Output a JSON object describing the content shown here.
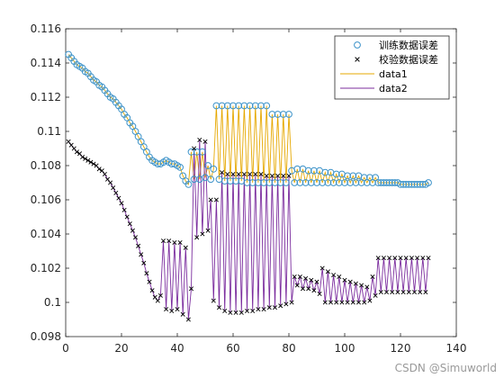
{
  "chart_data": {
    "type": "line",
    "title": "",
    "xlabel": "",
    "ylabel": "",
    "xlim": [
      0,
      140
    ],
    "ylim": [
      0.098,
      0.116
    ],
    "xticks": [
      "0",
      "20",
      "40",
      "60",
      "80",
      "100",
      "120",
      "140"
    ],
    "yticks": [
      "0.098",
      "0.1",
      "0.102",
      "0.104",
      "0.106",
      "0.108",
      "0.11",
      "0.112",
      "0.114",
      "0.116"
    ],
    "grid": false,
    "legend_position": "top-right",
    "legend": [
      {
        "label": "训练数据误差",
        "marker": "circle",
        "color": "#3d93c9"
      },
      {
        "label": "校验数据误差",
        "marker": "x",
        "color": "#000000"
      },
      {
        "label": "data1",
        "marker": "line",
        "color": "#e6a800"
      },
      {
        "label": "data2",
        "marker": "line",
        "color": "#7b2d9e"
      }
    ],
    "series_colors": {
      "train_marker": "#3d93c9",
      "check_marker": "#000000",
      "data1": "#e6a800",
      "data2": "#7b2d9e"
    },
    "series": [
      {
        "x": [
          1,
          2,
          3,
          4,
          5,
          6,
          7,
          8,
          9,
          10,
          11,
          12,
          13,
          14,
          15,
          16,
          17,
          18,
          19,
          20,
          21,
          22,
          23,
          24,
          25,
          26,
          27,
          28,
          29,
          30,
          31,
          32,
          33,
          34,
          35,
          36,
          37,
          38,
          39,
          40,
          41,
          42,
          43,
          44,
          45,
          46,
          47,
          48,
          49,
          50,
          51,
          52,
          53,
          54,
          55,
          56,
          57,
          58,
          59,
          60,
          61,
          62,
          63,
          64,
          65,
          66,
          67,
          68,
          69,
          70,
          71,
          72,
          73,
          74,
          75,
          76,
          77,
          78,
          79,
          80,
          81,
          82,
          83,
          84,
          85,
          86,
          87,
          88,
          89,
          90,
          91,
          92,
          93,
          94,
          95,
          96,
          97,
          98,
          99,
          100,
          101,
          102,
          103,
          104,
          105,
          106,
          107,
          108,
          109,
          110,
          111,
          112,
          113,
          114,
          115,
          116,
          117,
          118,
          119,
          120,
          121,
          122,
          123,
          124,
          125,
          126,
          127,
          128,
          129,
          130
        ],
        "values": [
          0.1145,
          0.1143,
          0.1141,
          0.1139,
          0.1138,
          0.1137,
          0.1135,
          0.1134,
          0.1132,
          0.113,
          0.1129,
          0.1127,
          0.1126,
          0.1124,
          0.1122,
          0.112,
          0.1119,
          0.1117,
          0.1115,
          0.1113,
          0.111,
          0.1108,
          0.1105,
          0.1103,
          0.11,
          0.1097,
          0.1094,
          0.1091,
          0.1088,
          0.1085,
          0.1083,
          0.1082,
          0.1081,
          0.1081,
          0.1082,
          0.1083,
          0.1082,
          0.1081,
          0.1081,
          0.108,
          0.1079,
          0.1074,
          0.1071,
          0.1069,
          0.1088,
          0.1072,
          0.1088,
          0.1072,
          0.1088,
          0.1073,
          0.108,
          0.1072,
          0.1078,
          0.1115,
          0.1072,
          0.1115,
          0.1071,
          0.1115,
          0.1071,
          0.1115,
          0.1071,
          0.1115,
          0.1071,
          0.1115,
          0.107,
          0.1115,
          0.107,
          0.1115,
          0.107,
          0.1115,
          0.107,
          0.1115,
          0.107,
          0.111,
          0.107,
          0.111,
          0.107,
          0.111,
          0.107,
          0.111,
          0.1077,
          0.107,
          0.1078,
          0.107,
          0.1078,
          0.107,
          0.1077,
          0.107,
          0.1077,
          0.107,
          0.1077,
          0.107,
          0.1076,
          0.107,
          0.1076,
          0.107,
          0.1075,
          0.107,
          0.1075,
          0.107,
          0.1074,
          0.107,
          0.1074,
          0.107,
          0.1074,
          0.107,
          0.1073,
          0.107,
          0.1073,
          0.107,
          0.1073,
          0.107,
          0.107,
          0.107,
          0.107,
          0.107,
          0.107,
          0.107,
          0.107,
          0.1069,
          0.1069,
          0.1069,
          0.1069,
          0.1069,
          0.1069,
          0.1069,
          0.1069,
          0.1069,
          0.1069,
          0.107
        ]
      },
      {
        "x": [
          1,
          2,
          3,
          4,
          5,
          6,
          7,
          8,
          9,
          10,
          11,
          12,
          13,
          14,
          15,
          16,
          17,
          18,
          19,
          20,
          21,
          22,
          23,
          24,
          25,
          26,
          27,
          28,
          29,
          30,
          31,
          32,
          33,
          34,
          35,
          36,
          37,
          38,
          39,
          40,
          41,
          42,
          43,
          44,
          45,
          46,
          47,
          48,
          49,
          50,
          51,
          52,
          53,
          54,
          55,
          56,
          57,
          58,
          59,
          60,
          61,
          62,
          63,
          64,
          65,
          66,
          67,
          68,
          69,
          70,
          71,
          72,
          73,
          74,
          75,
          76,
          77,
          78,
          79,
          80,
          81,
          82,
          83,
          84,
          85,
          86,
          87,
          88,
          89,
          90,
          91,
          92,
          93,
          94,
          95,
          96,
          97,
          98,
          99,
          100,
          101,
          102,
          103,
          104,
          105,
          106,
          107,
          108,
          109,
          110,
          111,
          112,
          113,
          114,
          115,
          116,
          117,
          118,
          119,
          120,
          121,
          122,
          123,
          124,
          125,
          126,
          127,
          128,
          129,
          130
        ],
        "values": [
          0.1094,
          0.1092,
          0.109,
          0.1088,
          0.1087,
          0.1085,
          0.1084,
          0.1083,
          0.1082,
          0.1081,
          0.108,
          0.1078,
          0.1077,
          0.1075,
          0.1072,
          0.107,
          0.1067,
          0.1064,
          0.1061,
          0.1058,
          0.1054,
          0.105,
          0.1046,
          0.1042,
          0.1038,
          0.1033,
          0.1028,
          0.1023,
          0.1017,
          0.1012,
          0.1007,
          0.1003,
          0.1001,
          0.1004,
          0.1036,
          0.0996,
          0.1036,
          0.0995,
          0.1035,
          0.0996,
          0.1035,
          0.0993,
          0.1032,
          0.099,
          0.1008,
          0.109,
          0.1038,
          0.1095,
          0.104,
          0.1094,
          0.1042,
          0.106,
          0.1001,
          0.106,
          0.0997,
          0.1076,
          0.0995,
          0.1075,
          0.0994,
          0.1075,
          0.0994,
          0.1075,
          0.0994,
          0.1075,
          0.0995,
          0.1075,
          0.0995,
          0.1075,
          0.0996,
          0.1075,
          0.0996,
          0.1074,
          0.0997,
          0.1074,
          0.0997,
          0.1074,
          0.0998,
          0.1074,
          0.0999,
          0.1074,
          0.1,
          0.1015,
          0.101,
          0.1015,
          0.1008,
          0.1014,
          0.1008,
          0.1013,
          0.1007,
          0.1012,
          0.1005,
          0.102,
          0.1,
          0.1018,
          0.1,
          0.1016,
          0.1,
          0.1015,
          0.1,
          0.1013,
          0.1,
          0.1012,
          0.1,
          0.1011,
          0.1,
          0.101,
          0.1,
          0.1009,
          0.1001,
          0.1015,
          0.1004,
          0.1026,
          0.1006,
          0.1026,
          0.1006,
          0.1026,
          0.1006,
          0.1026,
          0.1006,
          0.1026,
          0.1006,
          0.1026,
          0.1006,
          0.1026,
          0.1006,
          0.1026,
          0.1006,
          0.1026,
          0.1006,
          0.1026
        ]
      }
    ]
  },
  "watermark": "CSDN @Simuworld"
}
